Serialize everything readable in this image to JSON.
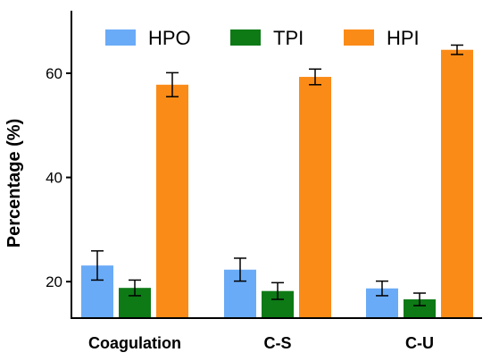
{
  "chart_data": {
    "type": "bar",
    "title": "",
    "xlabel": "",
    "ylabel": "Percentage (%)",
    "categories": [
      "Coagulation",
      "C-S",
      "C-U"
    ],
    "ylim": [
      13,
      72
    ],
    "yticks": [
      "20",
      "40",
      "60"
    ],
    "legend_position": "top",
    "grid": false,
    "series": [
      {
        "name": "HPO",
        "color": "#6aabf7",
        "values": [
          23.1,
          22.3,
          18.7
        ],
        "errors": [
          2.8,
          2.2,
          1.4
        ]
      },
      {
        "name": "TPI",
        "color": "#0d7a16",
        "values": [
          18.8,
          18.2,
          16.6
        ],
        "errors": [
          1.5,
          1.6,
          1.2
        ]
      },
      {
        "name": "HPI",
        "color": "#fb8b17",
        "values": [
          57.8,
          59.3,
          64.5
        ],
        "errors": [
          2.3,
          1.5,
          0.9
        ]
      }
    ]
  }
}
